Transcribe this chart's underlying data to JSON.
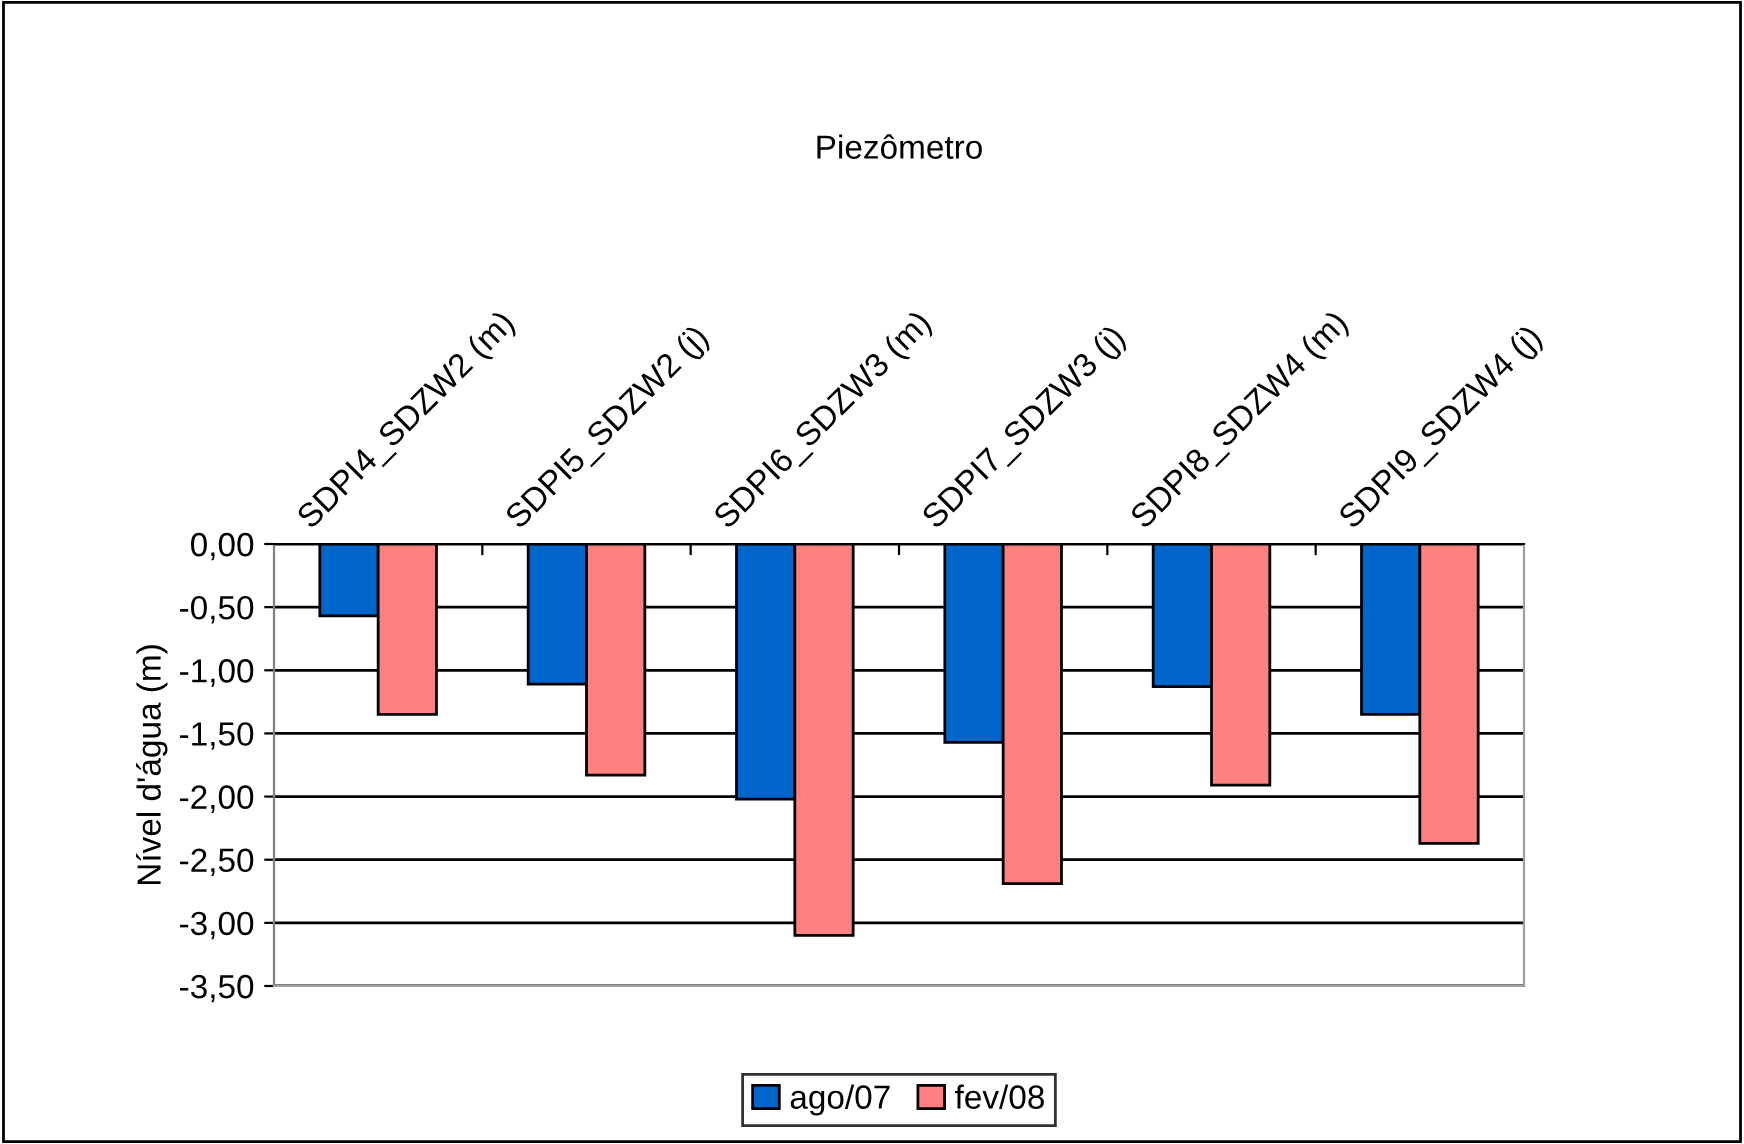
{
  "chart_data": {
    "type": "bar",
    "title": "Piezômetro",
    "ylabel": "Nível d'água (m)",
    "categories": [
      "SDPI4_SDZW2 (m)",
      "SDPI5_SDZW2 (j)",
      "SDPI6_SDZW3 (m)",
      "SDPI7_SDZW3 (j)",
      "SDPI8_SDZW4 (m)",
      "SDPI9_SDZW4 (j)"
    ],
    "series": [
      {
        "name": "ago/07",
        "color": "#0066cc",
        "values": [
          -0.57,
          -1.11,
          -2.02,
          -1.57,
          -1.13,
          -1.35
        ]
      },
      {
        "name": "fev/08",
        "color": "#ff8080",
        "values": [
          -1.35,
          -1.83,
          -3.1,
          -2.69,
          -1.91,
          -2.37
        ]
      }
    ],
    "ylim": [
      -3.5,
      0
    ],
    "yticks": [
      {
        "value": 0,
        "label": "0,00"
      },
      {
        "value": -0.5,
        "label": "-0,50"
      },
      {
        "value": -1,
        "label": "-1,00"
      },
      {
        "value": -1.5,
        "label": "-1,50"
      },
      {
        "value": -2,
        "label": "-2,00"
      },
      {
        "value": -2.5,
        "label": "-2,50"
      },
      {
        "value": -3,
        "label": "-3,00"
      },
      {
        "value": -3.5,
        "label": "-3,50"
      }
    ],
    "grid": "y",
    "legend": "bottom"
  }
}
